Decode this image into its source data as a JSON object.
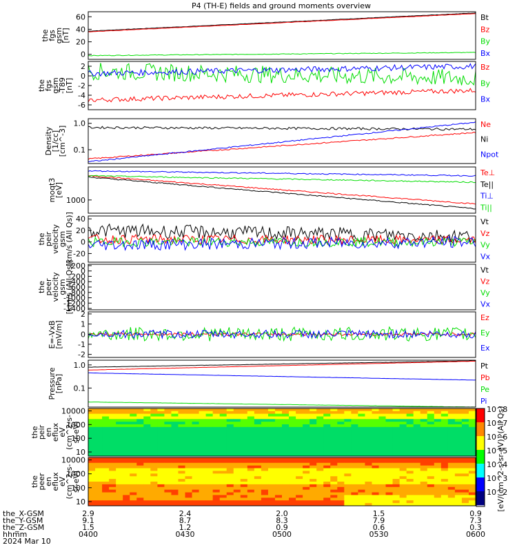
{
  "title": "P4 (TH-E) fields and ground moments overview",
  "colors": {
    "black": "#000000",
    "red": "#ff0000",
    "green": "#00dd00",
    "blue": "#0000ff"
  },
  "chart_data": [
    {
      "type": "line",
      "ylabel": [
        "the",
        "fgs",
        "gsm",
        "[nT]"
      ],
      "yticks": [
        "60",
        "40",
        "20",
        "0"
      ],
      "ylim": [
        -8,
        68
      ],
      "series": [
        {
          "name": "Bt",
          "color": "black",
          "start": 37,
          "end": 66,
          "noise": 0.3
        },
        {
          "name": "Bz",
          "color": "red",
          "start": 36,
          "end": 65,
          "noise": 0.3
        },
        {
          "name": "By",
          "color": "green",
          "start": -2,
          "end": 3,
          "noise": 0.5
        },
        {
          "name": "Bx",
          "color": "blue",
          "start": -10,
          "end": -10,
          "noise": 0.3
        }
      ]
    },
    {
      "type": "line",
      "ylabel": [
        "the",
        "fgs",
        "gsm",
        "-T89",
        "[nT]"
      ],
      "yticks": [
        "2",
        "0",
        "-2",
        "-4",
        "-6"
      ],
      "ylim": [
        -7,
        3
      ],
      "series": [
        {
          "name": "Bz",
          "color": "red",
          "start": -5,
          "end": -3,
          "noise": 0.5
        },
        {
          "name": "By",
          "color": "green",
          "start": 1,
          "end": -0.5,
          "noise": 1.8
        },
        {
          "name": "Bx",
          "color": "blue",
          "start": 0.5,
          "end": 2,
          "noise": 0.6
        }
      ]
    },
    {
      "type": "line",
      "ylabel": [
        "Density",
        "[1/cc]",
        "[cm^-3]"
      ],
      "yticks": [
        "1.0",
        "0.1"
      ],
      "ylim": [
        0.03,
        1.5
      ],
      "log": true,
      "series": [
        {
          "name": "Ne",
          "color": "red",
          "start": 0.045,
          "end": 0.45,
          "noise": 0.05
        },
        {
          "name": "Ni",
          "color": "black",
          "start": 0.7,
          "end": 0.6,
          "noise": 0.1
        },
        {
          "name": "Npot",
          "color": "blue",
          "start": 0.035,
          "end": 1.1,
          "noise": 0.05
        }
      ]
    },
    {
      "type": "line",
      "ylabel": [
        "moqt3",
        "[eV]"
      ],
      "yticks": [
        "1000"
      ],
      "ylim": [
        300,
        20000
      ],
      "log": true,
      "series": [
        {
          "name": "Te⊥",
          "color": "red",
          "start": 9000,
          "end": 700,
          "noise": 0.05
        },
        {
          "name": "Te||",
          "color": "black",
          "start": 8000,
          "end": 450,
          "noise": 0.05
        },
        {
          "name": "Ti⊥",
          "color": "blue",
          "start": 14000,
          "end": 9000,
          "noise": 0.05
        },
        {
          "name": "Ti||",
          "color": "green",
          "start": 9000,
          "end": 5000,
          "noise": 0.05
        }
      ]
    },
    {
      "type": "line",
      "ylabel": [
        "the",
        "peir",
        "velocity",
        "gsm",
        "[km/s (All Qs)]"
      ],
      "yticks": [
        "40",
        "20",
        "0",
        "-20"
      ],
      "ylim": [
        -35,
        45
      ],
      "series": [
        {
          "name": "Vt",
          "color": "black",
          "start": 20,
          "end": 10,
          "noise": 12
        },
        {
          "name": "Vz",
          "color": "red",
          "start": 5,
          "end": 3,
          "noise": 8
        },
        {
          "name": "Vy",
          "color": "green",
          "start": 0,
          "end": 0,
          "noise": 8
        },
        {
          "name": "Vx",
          "color": "blue",
          "start": -5,
          "end": 0,
          "noise": 10
        }
      ]
    },
    {
      "type": "line",
      "ylabel": [
        "the",
        "peer",
        "velocity",
        "gsm",
        "[km/s (All Qs)]"
      ],
      "yticks": [
        "200",
        "0",
        "-200",
        "-400",
        "-600",
        "-800",
        "-1000",
        "-1200",
        "-1400"
      ],
      "ylim": [
        -1450,
        250
      ],
      "series": [
        {
          "name": "Vt",
          "color": "black",
          "start": null,
          "end": null,
          "noise": 0
        },
        {
          "name": "Vz",
          "color": "red",
          "start": null,
          "end": null,
          "noise": 0
        },
        {
          "name": "Vy",
          "color": "green",
          "start": null,
          "end": null,
          "noise": 0
        },
        {
          "name": "Vx",
          "color": "blue",
          "start": null,
          "end": null,
          "noise": 0
        }
      ]
    },
    {
      "type": "line",
      "ylabel": [
        "E=-VxB",
        "[mV/m]"
      ],
      "yticks": [
        "2",
        "1",
        "0",
        "-1",
        "-2"
      ],
      "ylim": [
        -2.3,
        2.2
      ],
      "series": [
        {
          "name": "Ez",
          "color": "red",
          "start": 0,
          "end": 0,
          "noise": 0.15
        },
        {
          "name": "Ey",
          "color": "green",
          "start": 0,
          "end": 0,
          "noise": 0.7
        },
        {
          "name": "Ex",
          "color": "blue",
          "start": 0,
          "end": 0,
          "noise": 0.4
        }
      ]
    },
    {
      "type": "line",
      "ylabel": [
        "Pressure",
        "[nPa]"
      ],
      "yticks": [
        "1.0",
        "0.1"
      ],
      "ylim": [
        0.015,
        1.6
      ],
      "log": true,
      "series": [
        {
          "name": "Pt",
          "color": "black",
          "start": 0.8,
          "end": 1.5,
          "noise": 0.01
        },
        {
          "name": "Pb",
          "color": "red",
          "start": 0.6,
          "end": 1.45,
          "noise": 0.01
        },
        {
          "name": "Pe",
          "color": "green",
          "start": 0.025,
          "end": 0.015,
          "noise": 0.01
        },
        {
          "name": "Pi",
          "color": "blue",
          "start": 0.45,
          "end": 0.22,
          "noise": 0.01
        }
      ]
    },
    {
      "type": "heatmap",
      "ylabel": [
        "the",
        "peir",
        "en",
        "eflux",
        "eV",
        "(cm^2-s-",
        "sr-eV)"
      ],
      "yticks": [
        "10000",
        "1000",
        "100",
        "10"
      ],
      "ylim": [
        5,
        15000
      ],
      "log": true
    },
    {
      "type": "heatmap",
      "ylabel": [
        "the",
        "peer",
        "en",
        "eflux",
        "eV",
        "(cm^2-s-",
        "sr-eV)"
      ],
      "yticks": [
        "10000",
        "1000",
        "100",
        "10"
      ],
      "ylim": [
        5,
        15000
      ],
      "log": true
    }
  ],
  "colorbar": {
    "ticks": [
      "10^8",
      "10^7",
      "10^6",
      "10^5",
      "10^4",
      "10^3",
      "10^2"
    ],
    "label": "[eV/(cm^2-s-sr-eV)] (All Qs)"
  },
  "xaxis": {
    "row_labels": [
      "the_X-GSM",
      "the_Y-GSM",
      "the_Z-GSM",
      "hhmm",
      "2024 Mar 10"
    ],
    "columns": [
      {
        "x": "2.9",
        "y": "9.1",
        "z": "1.5",
        "t": "0400"
      },
      {
        "x": "2.4",
        "y": "8.7",
        "z": "1.2",
        "t": "0430"
      },
      {
        "x": "2.0",
        "y": "8.3",
        "z": "0.9",
        "t": "0500"
      },
      {
        "x": "1.5",
        "y": "7.9",
        "z": "0.6",
        "t": "0530"
      },
      {
        "x": "0.9",
        "y": "7.3",
        "z": "0.3",
        "t": "0600"
      }
    ]
  }
}
